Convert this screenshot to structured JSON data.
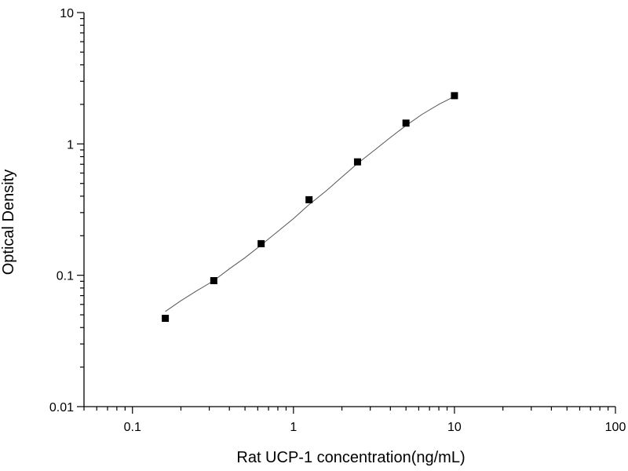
{
  "chart_data": {
    "type": "scatter",
    "title": "",
    "xlabel": "Rat UCP-1 concentration(ng/mL)",
    "ylabel": "Optical Density",
    "x_scale": "log",
    "y_scale": "log",
    "xlim": [
      0.05,
      100
    ],
    "ylim": [
      0.01,
      10
    ],
    "grid": false,
    "legend": "none",
    "x_ticks": [
      "0.1",
      "1",
      "10",
      "100"
    ],
    "y_ticks": [
      "0.01",
      "0.1",
      "1",
      "10"
    ],
    "series": [
      {
        "x": [
          0.16,
          0.32,
          0.63,
          1.25,
          2.5,
          5,
          10
        ],
        "y": [
          0.047,
          0.091,
          0.174,
          0.376,
          0.73,
          1.44,
          2.33
        ]
      }
    ],
    "fit_curve": {
      "x": [
        0.16,
        0.2,
        0.25,
        0.32,
        0.4,
        0.5,
        0.63,
        0.8,
        1.0,
        1.25,
        1.6,
        2.0,
        2.5,
        3.2,
        4.0,
        5.0,
        6.3,
        8.0,
        10
      ],
      "y": [
        0.053,
        0.064,
        0.076,
        0.091,
        0.112,
        0.136,
        0.17,
        0.216,
        0.27,
        0.345,
        0.44,
        0.56,
        0.71,
        0.9,
        1.12,
        1.38,
        1.68,
        2.0,
        2.3
      ]
    },
    "marker_color": "#000000",
    "line_color": "#555555"
  }
}
